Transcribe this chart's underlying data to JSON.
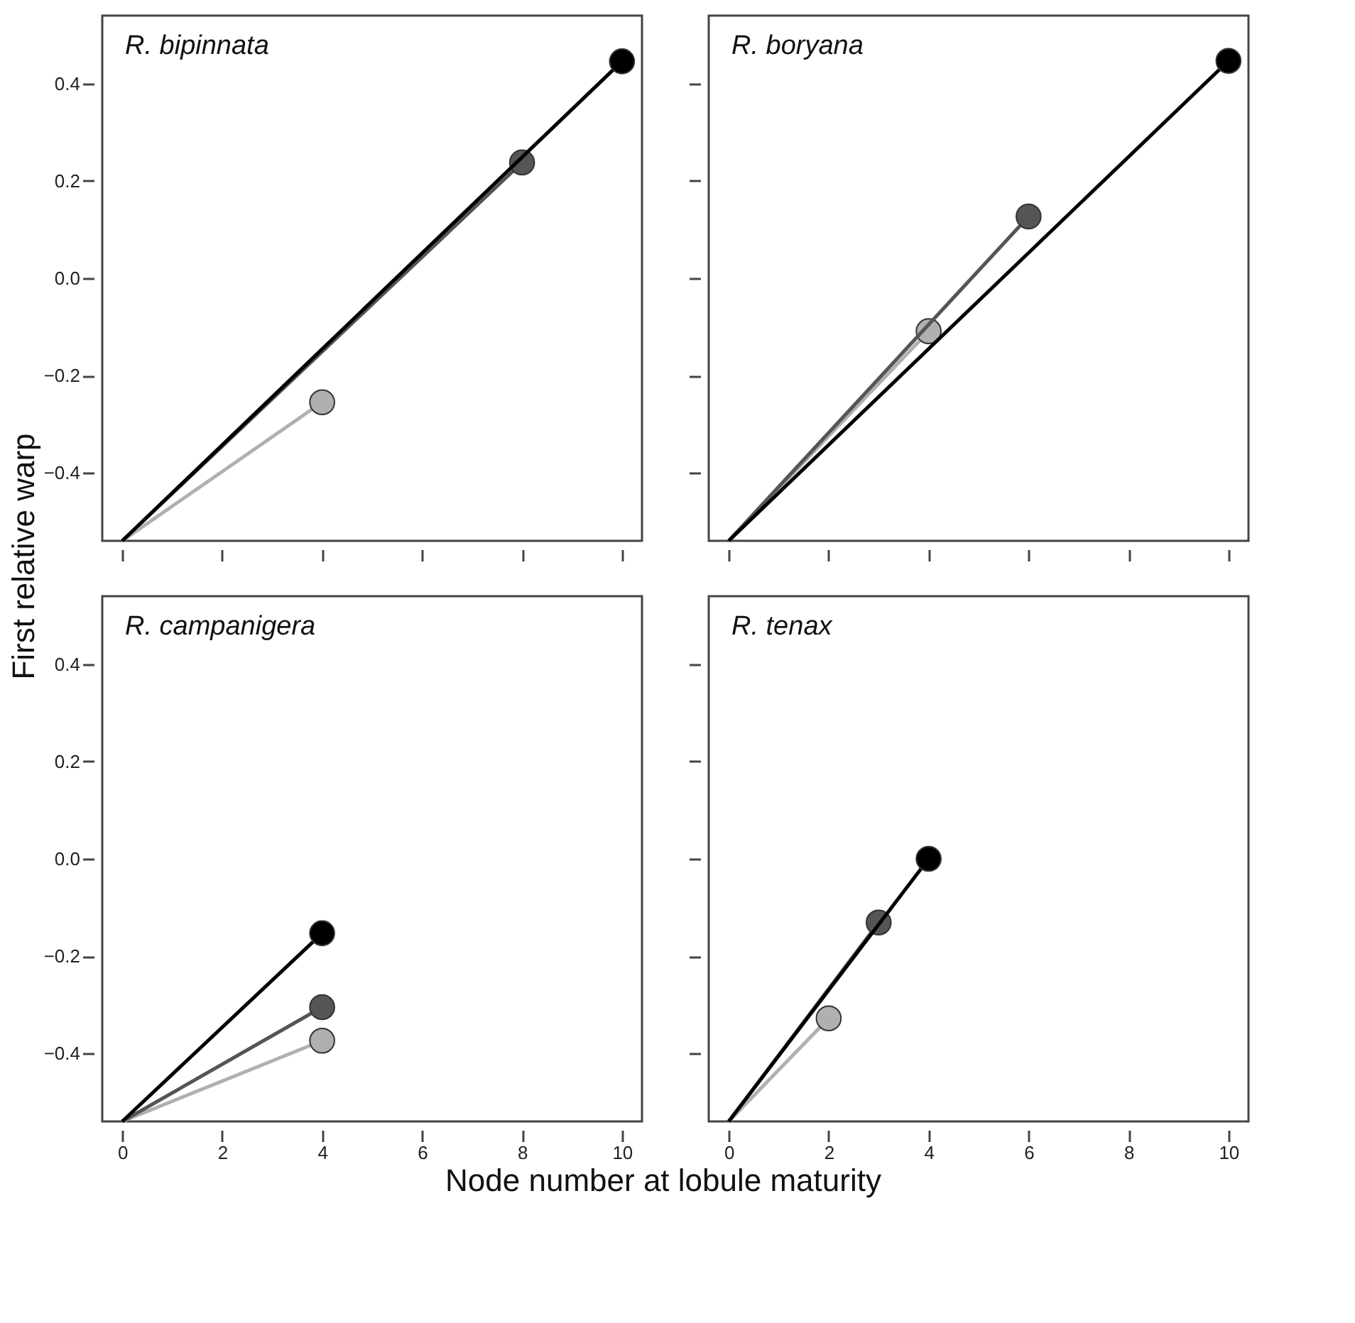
{
  "chart_data": [
    {
      "type": "line",
      "title": "R. bipinnata",
      "ylabel": "First  relative warp",
      "xlim": [
        -0.4,
        10.4
      ],
      "ylim": [
        -0.54,
        0.54
      ],
      "xticks": [
        {
          "value": 0,
          "label": null
        },
        {
          "value": 2,
          "label": null
        },
        {
          "value": 4,
          "label": null
        },
        {
          "value": 6,
          "label": null
        },
        {
          "value": 8,
          "label": null
        },
        {
          "value": 10,
          "label": null
        }
      ],
      "yticks": [
        -0.4,
        -0.2,
        {
          "value": 0,
          "label": "0.0"
        },
        0.2,
        0.4
      ],
      "tick_labels": "y",
      "grid": false,
      "marker": "circle",
      "line_style": "solid",
      "series": [
        {
          "color": "#b0b0b0",
          "x": [
            0,
            4
          ],
          "values": [
            -0.54,
            -0.255
          ]
        },
        {
          "color": "#555555",
          "x": [
            0,
            8
          ],
          "values": [
            -0.54,
            0.238
          ]
        },
        {
          "color": "#000000",
          "x": [
            0,
            10
          ],
          "values": [
            -0.54,
            0.446
          ]
        }
      ]
    },
    {
      "type": "line",
      "title": "R. boryana",
      "xlim": [
        -0.4,
        10.4
      ],
      "ylim": [
        -0.54,
        0.54
      ],
      "xticks": [
        {
          "value": 0,
          "label": null
        },
        {
          "value": 2,
          "label": null
        },
        {
          "value": 4,
          "label": null
        },
        {
          "value": 6,
          "label": null
        },
        {
          "value": 8,
          "label": null
        },
        {
          "value": 10,
          "label": null
        }
      ],
      "yticks": [
        {
          "value": -0.4,
          "label": null
        },
        {
          "value": -0.2,
          "label": null
        },
        {
          "value": 0.0,
          "label": null
        },
        {
          "value": 0.2,
          "label": null
        },
        {
          "value": 0.4,
          "label": null
        }
      ],
      "tick_labels": false,
      "grid": false,
      "marker": "circle",
      "line_style": "solid",
      "series": [
        {
          "color": "#b0b0b0",
          "x": [
            0,
            4
          ],
          "values": [
            -0.54,
            -0.109
          ]
        },
        {
          "color": "#555555",
          "x": [
            0,
            6
          ],
          "values": [
            -0.54,
            0.127
          ]
        },
        {
          "color": "#000000",
          "x": [
            0,
            10
          ],
          "values": [
            -0.54,
            0.447
          ]
        }
      ]
    },
    {
      "type": "line",
      "title": "R. campanigera",
      "xlabel": "Node number at lobule maturity",
      "xlim": [
        -0.4,
        10.4
      ],
      "ylim": [
        -0.54,
        0.54
      ],
      "xticks": [
        0,
        2,
        4,
        6,
        8,
        10
      ],
      "yticks": [
        -0.4,
        -0.2,
        {
          "value": 0,
          "label": "0.0"
        },
        0.2,
        0.4
      ],
      "grid": false,
      "marker": "circle",
      "line_style": "solid",
      "series": [
        {
          "color": "#b0b0b0",
          "x": [
            0,
            4
          ],
          "values": [
            -0.54,
            -0.374
          ]
        },
        {
          "color": "#555555",
          "x": [
            0,
            4
          ],
          "values": [
            -0.54,
            -0.305
          ]
        },
        {
          "color": "#000000",
          "x": [
            0,
            4
          ],
          "values": [
            -0.54,
            -0.153
          ]
        }
      ]
    },
    {
      "type": "line",
      "title": "R. tenax",
      "xlim": [
        -0.4,
        10.4
      ],
      "ylim": [
        -0.54,
        0.54
      ],
      "xticks": [
        0,
        2,
        4,
        6,
        8,
        10
      ],
      "yticks": [
        {
          "value": -0.4,
          "label": null
        },
        {
          "value": -0.2,
          "label": null
        },
        {
          "value": 0.0,
          "label": null
        },
        {
          "value": 0.2,
          "label": null
        },
        {
          "value": 0.4,
          "label": null
        }
      ],
      "tick_labels": "x",
      "grid": false,
      "marker": "circle",
      "line_style": "solid",
      "series": [
        {
          "color": "#b0b0b0",
          "x": [
            0,
            2
          ],
          "values": [
            -0.54,
            -0.328
          ]
        },
        {
          "color": "#555555",
          "x": [
            0,
            3
          ],
          "values": [
            -0.54,
            -0.131
          ]
        },
        {
          "color": "#000000",
          "x": [
            0,
            4
          ],
          "values": [
            -0.54,
            0.0
          ]
        }
      ]
    }
  ]
}
